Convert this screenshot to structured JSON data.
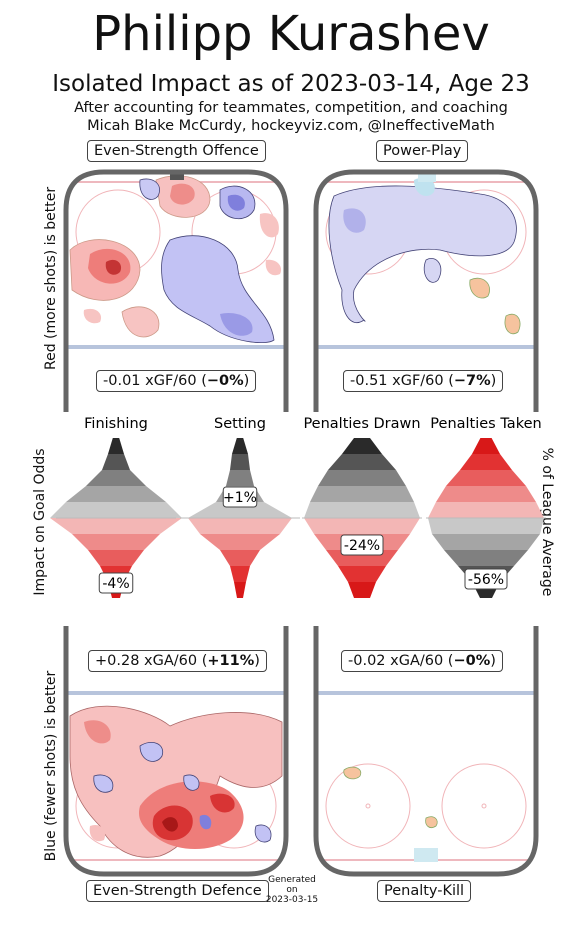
{
  "header": {
    "title": "Philipp Kurashev",
    "subtitle": "Isolated Impact as of 2023-03-14, Age 23",
    "note_line1": "After accounting for teammates, competition, and coaching",
    "note_line2": "Micah Blake McCurdy, hockeyviz.com, @IneffectiveMath"
  },
  "axis_labels": {
    "top_left": "Red (more shots) is better",
    "middle_left": "Impact on Goal Odds",
    "middle_right": "% of League Average",
    "bottom_left": "Blue (fewer shots) is better"
  },
  "rinks": {
    "es_offence": {
      "label": "Even-Strength Offence",
      "stat_prefix": "-0.01 xGF/60 (",
      "stat_bold": "−0%",
      "stat_suffix": ")"
    },
    "power_play": {
      "label": "Power-Play",
      "stat_prefix": "-0.51 xGF/60 (",
      "stat_bold": "−7%",
      "stat_suffix": ")"
    },
    "es_defence": {
      "label": "Even-Strength Defence",
      "stat_prefix": "+0.28 xGA/60 (",
      "stat_bold": "+11%",
      "stat_suffix": ")"
    },
    "penalty_kill": {
      "label": "Penalty-Kill",
      "stat_prefix": "-0.02 xGA/60 (",
      "stat_bold": "−0%",
      "stat_suffix": ")"
    }
  },
  "generated": {
    "line1": "Generated",
    "line2": "on",
    "line3": "2023-03-15"
  },
  "colors": {
    "red": "#e8383c",
    "blue": "#8a8ae6",
    "grey": "#888888",
    "rink_border": "#666666",
    "blue_line": "#b7c4dc",
    "goal_line": "#e9a0a8"
  },
  "chart_data": {
    "type": "bar",
    "title": "",
    "ylabel": "Impact on Goal Odds",
    "categories": [
      "Finishing",
      "Setting",
      "Penalties Drawn",
      "Penalties Taken"
    ],
    "values": [
      -4,
      1,
      -24,
      -56
    ],
    "value_labels": [
      "-4%",
      "+1%",
      "-24%",
      "-56%"
    ],
    "units": "% of League Average"
  }
}
